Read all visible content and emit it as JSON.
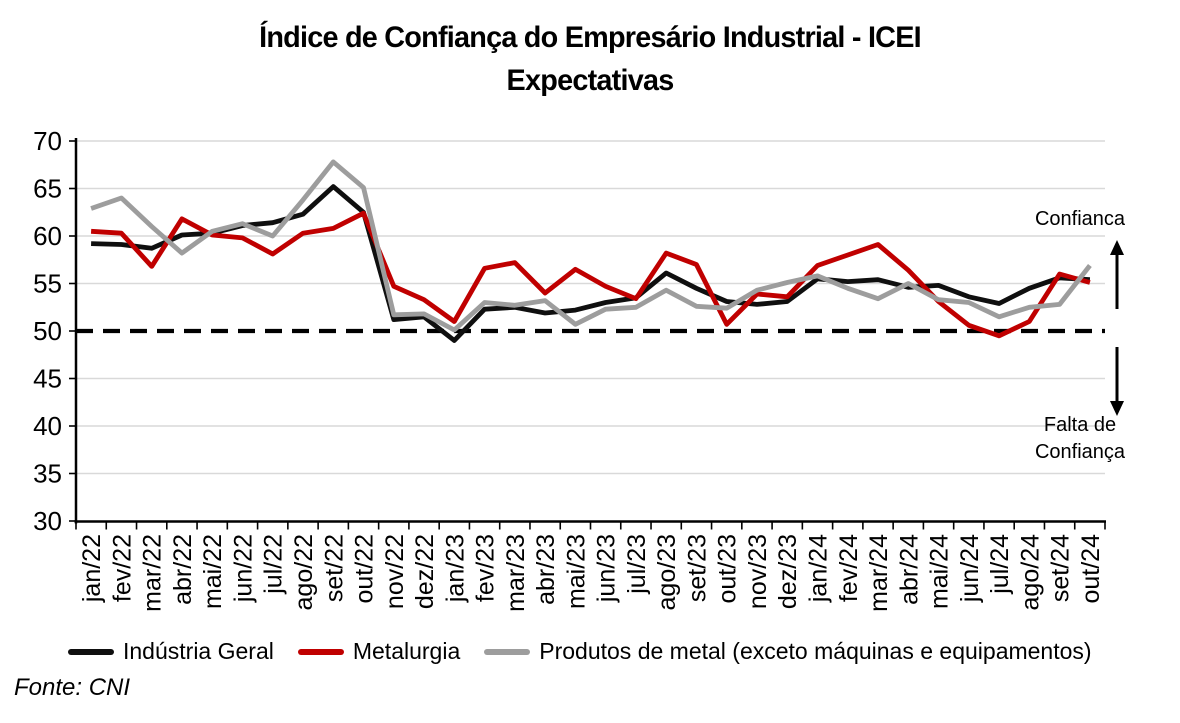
{
  "title": {
    "line1": "Índice de Confiança do Empresário Industrial - ICEI",
    "line2": "Expectativas"
  },
  "source_note": "Fonte: CNI",
  "annotations": {
    "confidence_label": "Confianca",
    "lack_label_line1": "Falta de",
    "lack_label_line2": "Confiança"
  },
  "axis": {
    "y_ticks": [
      70,
      65,
      60,
      55,
      50,
      45,
      40,
      35,
      30
    ],
    "gridline_values": [
      70,
      65,
      60,
      55,
      45,
      40,
      35
    ]
  },
  "colors": {
    "grid": "#D9D9D9",
    "axis": "#000000",
    "reference_line": "#000000"
  },
  "chart_data": {
    "type": "line",
    "title": "Índice de Confiança do Empresário Industrial - ICEI — Expectativas",
    "ylim": [
      30,
      70
    ],
    "ytick_step": 5,
    "reference_line": 50,
    "grid": true,
    "legend_position": "bottom",
    "categories": [
      "jan/22",
      "fev/22",
      "mar/22",
      "abr/22",
      "mai/22",
      "jun/22",
      "jul/22",
      "ago/22",
      "set/22",
      "out/22",
      "nov/22",
      "dez/22",
      "jan/23",
      "fev/23",
      "mar/23",
      "abr/23",
      "mai/23",
      "jun/23",
      "jul/23",
      "ago/23",
      "set/23",
      "out/23",
      "nov/23",
      "dez/23",
      "jan/24",
      "fev/24",
      "mar/24",
      "abr/24",
      "mai/24",
      "jun/24",
      "jul/24",
      "ago/24",
      "set/24",
      "out/24"
    ],
    "series": [
      {
        "name": "Indústria Geral",
        "color": "#0f0f0f",
        "values": [
          59.2,
          59.1,
          58.7,
          60.1,
          60.3,
          61.1,
          61.4,
          62.3,
          65.2,
          62.5,
          51.2,
          51.5,
          49.0,
          52.3,
          52.5,
          51.9,
          52.2,
          53.0,
          53.5,
          56.1,
          54.5,
          53.1,
          52.8,
          53.1,
          55.5,
          55.2,
          55.4,
          54.6,
          54.8,
          53.6,
          52.9,
          54.5,
          55.6,
          55.4
        ]
      },
      {
        "name": "Metalurgia",
        "color": "#C00000",
        "values": [
          60.5,
          60.3,
          56.8,
          61.8,
          60.1,
          59.8,
          58.1,
          60.3,
          60.8,
          62.4,
          54.7,
          53.3,
          51.0,
          56.6,
          57.2,
          54.0,
          56.5,
          54.7,
          53.4,
          58.2,
          57.0,
          50.7,
          53.9,
          53.6,
          56.9,
          58.0,
          59.1,
          56.4,
          53.1,
          50.6,
          49.5,
          51.0,
          56.0,
          55.1
        ]
      },
      {
        "name": "Produtos de metal (exceto máquinas e equipamentos)",
        "color": "#9D9D9D",
        "values": [
          62.9,
          64.0,
          61.0,
          58.2,
          60.5,
          61.3,
          60.0,
          63.8,
          67.8,
          65.1,
          51.7,
          51.8,
          50.1,
          53.0,
          52.7,
          53.2,
          50.7,
          52.3,
          52.5,
          54.3,
          52.6,
          52.4,
          54.3,
          55.1,
          55.8,
          54.5,
          53.4,
          55.0,
          53.3,
          53.0,
          51.5,
          52.5,
          52.8,
          56.9
        ]
      }
    ]
  }
}
